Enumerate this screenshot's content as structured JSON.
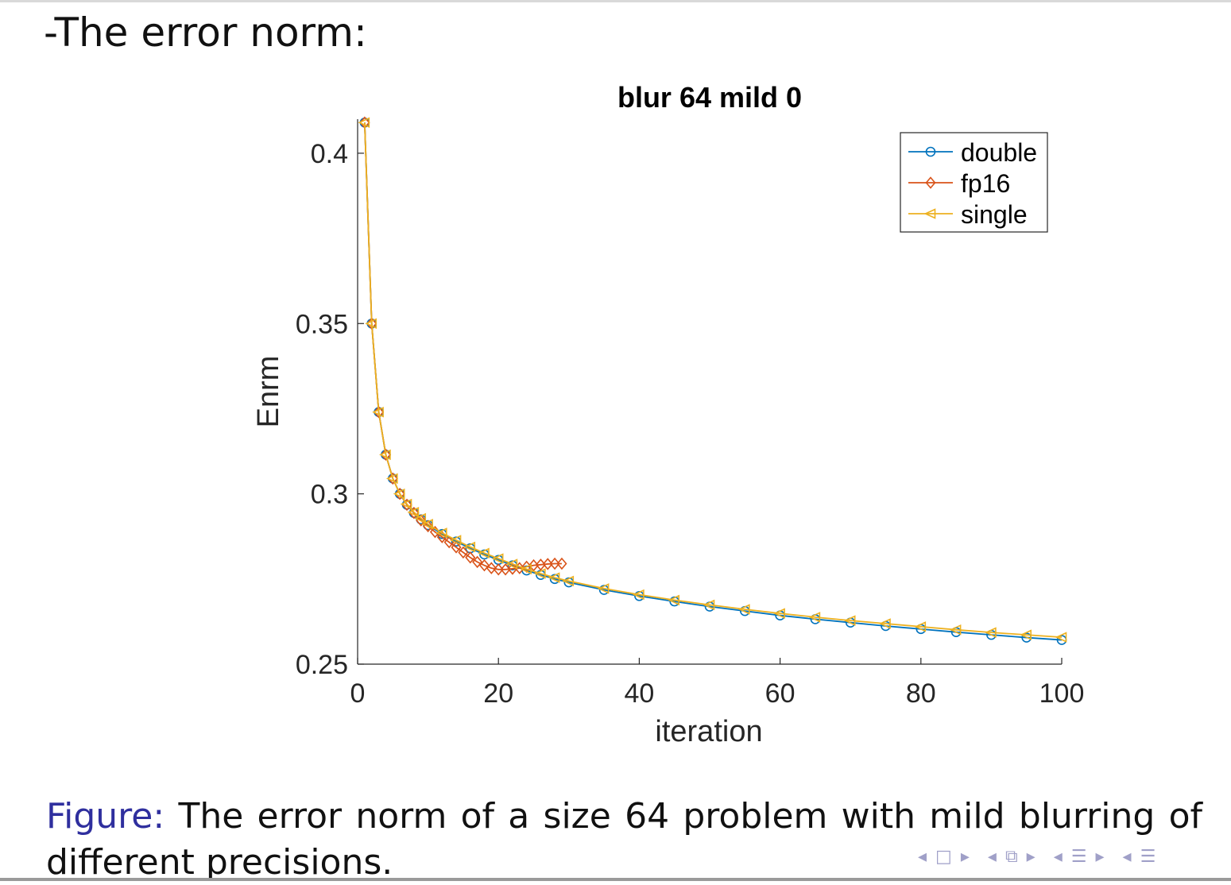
{
  "slide": {
    "heading": "-The error norm:",
    "caption_prefix": "Figure:",
    "caption_line1": "The error norm of a size 64 problem with mild blurring of",
    "caption_line2": "different precisions."
  },
  "nav": {
    "icons": [
      "nav-prev-frame",
      "nav-frame-box",
      "nav-next-frame",
      "nav-prev-subsection",
      "nav-subsection-stack",
      "nav-next-subsection",
      "nav-prev-section",
      "nav-section-list",
      "nav-next-section",
      "nav-prev-doc"
    ],
    "color": "#a0a0c8"
  },
  "chart_data": {
    "type": "line",
    "title": "blur 64 mild 0",
    "xlabel": "iteration",
    "ylabel": "Enrm",
    "xlim": [
      0,
      100
    ],
    "ylim": [
      0.25,
      0.41
    ],
    "xticks": [
      0,
      20,
      40,
      60,
      80,
      100
    ],
    "yticks": [
      0.25,
      0.3,
      0.35,
      0.4
    ],
    "ytick_labels": [
      "0.25",
      "0.3",
      "0.35",
      "0.4"
    ],
    "grid": false,
    "legend_position": "top-right",
    "series": [
      {
        "name": "double",
        "color": "#0072BD",
        "marker": "circle",
        "x": [
          1,
          2,
          3,
          4,
          5,
          6,
          7,
          8,
          9,
          10,
          12,
          14,
          16,
          18,
          20,
          22,
          24,
          26,
          28,
          30,
          35,
          40,
          45,
          50,
          55,
          60,
          65,
          70,
          75,
          80,
          85,
          90,
          95,
          100
        ],
        "y": [
          0.409,
          0.35,
          0.324,
          0.3115,
          0.3045,
          0.3,
          0.2968,
          0.2944,
          0.2925,
          0.2908,
          0.2882,
          0.286,
          0.284,
          0.2822,
          0.2806,
          0.279,
          0.2775,
          0.2762,
          0.275,
          0.274,
          0.2718,
          0.27,
          0.2684,
          0.2669,
          0.2656,
          0.2643,
          0.2632,
          0.2622,
          0.2612,
          0.2603,
          0.2594,
          0.2586,
          0.2578,
          0.2571
        ]
      },
      {
        "name": "fp16",
        "color": "#D95319",
        "marker": "diamond",
        "x": [
          1,
          2,
          3,
          4,
          5,
          6,
          7,
          8,
          9,
          10,
          11,
          12,
          13,
          14,
          15,
          16,
          17,
          18,
          19,
          20,
          21,
          22,
          23,
          24,
          25,
          26,
          27,
          28,
          29
        ],
        "y": [
          0.409,
          0.35,
          0.324,
          0.3115,
          0.3045,
          0.3,
          0.2968,
          0.2944,
          0.2922,
          0.2905,
          0.2888,
          0.2873,
          0.2858,
          0.2843,
          0.2828,
          0.2813,
          0.28,
          0.279,
          0.2782,
          0.2778,
          0.2778,
          0.278,
          0.2782,
          0.2786,
          0.279,
          0.2792,
          0.2794,
          0.2795,
          0.2795
        ]
      },
      {
        "name": "single",
        "color": "#EDB120",
        "marker": "triangle-left",
        "x": [
          1,
          2,
          3,
          4,
          5,
          6,
          7,
          8,
          9,
          10,
          12,
          14,
          16,
          18,
          20,
          22,
          24,
          26,
          28,
          30,
          35,
          40,
          45,
          50,
          55,
          60,
          65,
          70,
          75,
          80,
          85,
          90,
          95,
          100
        ],
        "y": [
          0.409,
          0.35,
          0.324,
          0.3115,
          0.3045,
          0.3,
          0.297,
          0.2946,
          0.2928,
          0.2911,
          0.2885,
          0.2864,
          0.2844,
          0.2826,
          0.281,
          0.2794,
          0.2779,
          0.2766,
          0.2754,
          0.2744,
          0.2722,
          0.2704,
          0.2688,
          0.2674,
          0.2661,
          0.2649,
          0.2638,
          0.2628,
          0.2619,
          0.261,
          0.2601,
          0.2593,
          0.2586,
          0.2579
        ]
      }
    ]
  }
}
